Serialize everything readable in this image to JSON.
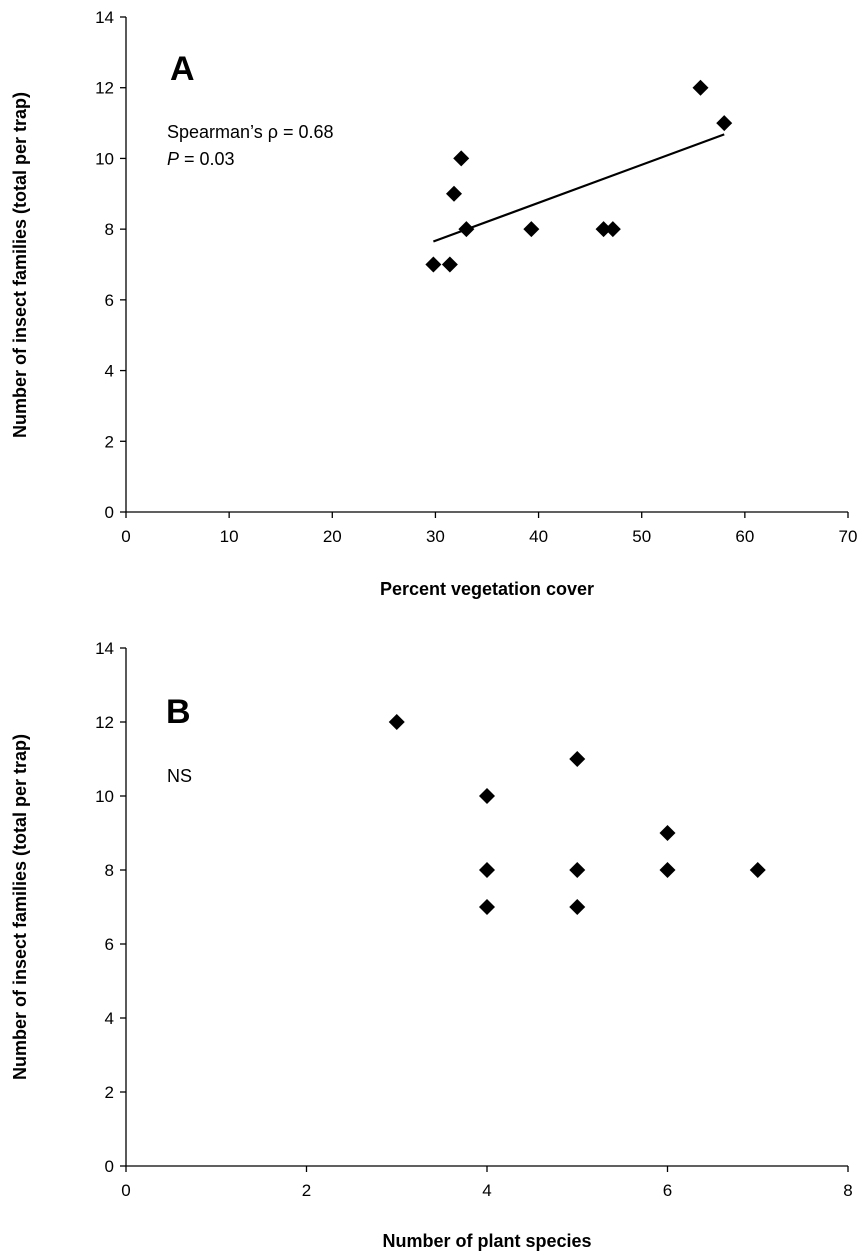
{
  "chart_data": [
    {
      "type": "scatter",
      "panel_label": "A",
      "xlabel": "Percent vegetation cover",
      "ylabel": "Number of insect families (total per trap)",
      "xlim": [
        0,
        70
      ],
      "ylim": [
        0,
        14
      ],
      "xticks": [
        0,
        10,
        20,
        30,
        40,
        50,
        60,
        70
      ],
      "yticks": [
        0,
        2,
        4,
        6,
        8,
        10,
        12,
        14
      ],
      "grid": false,
      "annotations": [
        {
          "text": "Spearman’s ρ = 0.68"
        },
        {
          "prefix": "P",
          "text": " = 0.03"
        }
      ],
      "trendline": {
        "x": [
          29.8,
          58
        ],
        "y": [
          7.65,
          10.68
        ]
      },
      "points": [
        {
          "x": 29.8,
          "y": 7
        },
        {
          "x": 31.4,
          "y": 7
        },
        {
          "x": 31.8,
          "y": 9
        },
        {
          "x": 32.5,
          "y": 10
        },
        {
          "x": 33.0,
          "y": 8
        },
        {
          "x": 39.3,
          "y": 8
        },
        {
          "x": 46.3,
          "y": 8
        },
        {
          "x": 47.2,
          "y": 8
        },
        {
          "x": 55.7,
          "y": 12
        },
        {
          "x": 58.0,
          "y": 11
        }
      ]
    },
    {
      "type": "scatter",
      "panel_label": "B",
      "xlabel": "Number of plant species",
      "ylabel": "Number of insect families (total per trap)",
      "xlim": [
        0,
        8
      ],
      "ylim": [
        0,
        14
      ],
      "xticks": [
        0,
        2,
        4,
        6,
        8
      ],
      "yticks": [
        0,
        2,
        4,
        6,
        8,
        10,
        12,
        14
      ],
      "grid": false,
      "annotations": [
        {
          "text": "NS"
        }
      ],
      "points": [
        {
          "x": 3,
          "y": 12
        },
        {
          "x": 4,
          "y": 10
        },
        {
          "x": 4,
          "y": 8
        },
        {
          "x": 4,
          "y": 7
        },
        {
          "x": 5,
          "y": 11
        },
        {
          "x": 5,
          "y": 8
        },
        {
          "x": 5,
          "y": 7
        },
        {
          "x": 6,
          "y": 9
        },
        {
          "x": 6,
          "y": 8
        },
        {
          "x": 7,
          "y": 8
        }
      ]
    }
  ]
}
